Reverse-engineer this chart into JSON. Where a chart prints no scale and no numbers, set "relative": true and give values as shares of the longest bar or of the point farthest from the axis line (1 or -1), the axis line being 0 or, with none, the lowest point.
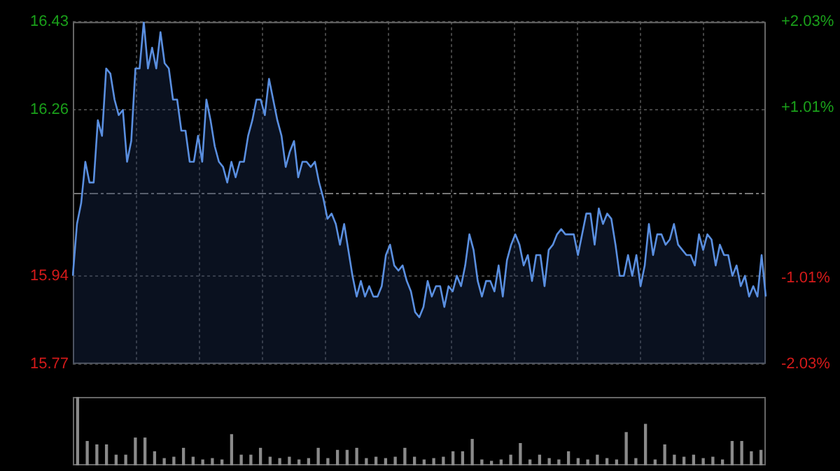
{
  "chart_data": [
    {
      "type": "area",
      "categories": [
        null,
        null,
        null,
        null,
        null,
        null,
        null,
        null,
        null,
        null,
        null,
        null,
        null,
        null,
        null,
        null,
        null,
        null,
        null,
        null,
        null,
        null,
        null,
        null,
        null,
        null,
        null,
        null,
        null,
        null,
        null,
        null,
        null,
        null,
        null,
        null,
        null,
        null,
        null,
        null,
        null,
        null,
        null,
        null,
        null,
        null,
        null,
        null,
        null,
        null,
        null,
        null,
        null,
        null,
        null,
        null,
        null,
        null,
        null,
        null,
        null,
        null,
        null,
        null,
        null,
        null,
        null,
        null,
        null,
        null,
        null,
        null,
        null,
        null,
        null,
        null,
        null,
        null,
        null,
        null,
        null,
        null,
        null,
        null,
        null,
        null,
        null,
        null,
        null,
        null,
        null,
        null,
        null,
        null,
        null,
        null,
        null,
        null,
        null,
        null,
        null,
        null,
        null,
        null,
        null,
        null,
        null,
        null,
        null,
        null,
        null,
        null,
        null,
        null,
        null,
        null,
        null,
        null,
        null,
        null,
        null,
        null,
        null,
        null,
        null,
        null,
        null,
        null,
        null,
        null,
        null,
        null,
        null,
        null,
        null,
        null,
        null,
        null,
        null,
        null,
        null,
        null,
        null,
        null,
        null,
        null,
        null,
        null,
        null,
        null,
        null,
        null,
        null,
        null,
        null,
        null,
        null,
        null,
        null,
        null,
        null,
        null,
        null,
        null,
        null,
        null,
        null
      ],
      "series": [
        {
          "color": "#5a8fe0",
          "values": [
            15.94,
            16.04,
            16.08,
            16.16,
            16.12,
            16.12,
            16.24,
            16.21,
            16.34,
            16.33,
            16.28,
            16.25,
            16.26,
            16.16,
            16.2,
            16.34,
            16.34,
            16.43,
            16.34,
            16.38,
            16.34,
            16.41,
            16.35,
            16.34,
            16.28,
            16.28,
            16.22,
            16.22,
            16.16,
            16.16,
            16.21,
            16.16,
            16.28,
            16.24,
            16.19,
            16.16,
            16.15,
            16.12,
            16.16,
            16.13,
            16.16,
            16.16,
            16.21,
            16.24,
            16.28,
            16.28,
            16.25,
            16.32,
            16.28,
            16.24,
            16.21,
            16.15,
            16.18,
            16.2,
            16.13,
            16.16,
            16.16,
            16.15,
            16.16,
            16.12,
            16.09,
            16.05,
            16.06,
            16.04,
            16.0,
            16.04,
            15.99,
            15.94,
            15.9,
            15.93,
            15.9,
            15.92,
            15.9,
            15.9,
            15.92,
            15.98,
            16.0,
            15.96,
            15.95,
            15.96,
            15.93,
            15.91,
            15.87,
            15.86,
            15.88,
            15.93,
            15.9,
            15.92,
            15.92,
            15.88,
            15.92,
            15.91,
            15.94,
            15.92,
            15.96,
            16.02,
            15.99,
            15.93,
            15.9,
            15.93,
            15.93,
            15.91,
            15.96,
            15.9,
            15.97,
            16.0,
            16.02,
            16.0,
            15.96,
            15.98,
            15.93,
            15.98,
            15.98,
            15.92,
            15.99,
            16.0,
            16.02,
            16.03,
            16.02,
            16.02,
            16.02,
            15.98,
            16.02,
            16.06,
            16.06,
            16.0,
            16.07,
            16.04,
            16.06,
            16.05,
            16.0,
            15.94,
            15.94,
            15.98,
            15.94,
            15.98,
            15.92,
            15.96,
            16.04,
            15.98,
            16.02,
            16.02,
            16.0,
            16.01,
            16.04,
            16.0,
            15.99,
            15.98,
            15.98,
            15.96,
            16.02,
            15.99,
            16.02,
            16.01,
            15.96,
            16.0,
            15.98,
            15.98,
            15.94,
            15.96,
            15.92,
            15.94,
            15.9,
            15.92,
            15.9,
            15.98,
            15.9
          ]
        }
      ],
      "ylim": [
        15.77,
        16.43
      ],
      "yticks": [
        16.43,
        16.26,
        15.94,
        15.77
      ],
      "ref_lines": [
        {
          "axis": "y",
          "value": 16.1,
          "color": "#777777",
          "line_style": "dashed"
        }
      ],
      "y2lim": [
        -2.03,
        2.03
      ],
      "y2ticks": [
        {
          "value": 2.03,
          "label": "+2.03%"
        },
        {
          "value": 1.01,
          "label": "+1.01%"
        },
        {
          "value": 0,
          "label": null
        },
        {
          "value": -1.01,
          "label": "-1.01%"
        },
        {
          "value": -2.03,
          "label": "-2.03%"
        }
      ],
      "grid": true,
      "legend": false,
      "marker": "none",
      "line_style": "solid",
      "tick_labels": "y"
    },
    {
      "type": "bar",
      "relative": true,
      "tick_labels": false,
      "legend": false,
      "grid": false,
      "categories": [
        null,
        null,
        null,
        null,
        null,
        null,
        null,
        null,
        null,
        null,
        null,
        null,
        null,
        null,
        null,
        null,
        null,
        null,
        null,
        null,
        null,
        null,
        null,
        null,
        null,
        null,
        null,
        null,
        null,
        null,
        null,
        null,
        null,
        null,
        null,
        null,
        null,
        null,
        null,
        null,
        null,
        null,
        null,
        null,
        null,
        null,
        null,
        null,
        null,
        null,
        null,
        null,
        null,
        null,
        null,
        null,
        null,
        null,
        null,
        null,
        null,
        null,
        null,
        null,
        null,
        null,
        null,
        null,
        null,
        null,
        null,
        null
      ],
      "series": [
        {
          "color": "#8a8a8a",
          "values": [
            1.0,
            0.35,
            0.3,
            0.3,
            0.15,
            0.15,
            0.4,
            0.4,
            0.2,
            0.1,
            0.12,
            0.25,
            0.12,
            0.08,
            0.1,
            0.08,
            0.45,
            0.15,
            0.15,
            0.25,
            0.12,
            0.1,
            0.12,
            0.08,
            0.1,
            0.25,
            0.1,
            0.22,
            0.22,
            0.25,
            0.1,
            0.12,
            0.1,
            0.12,
            0.25,
            0.12,
            0.08,
            0.1,
            0.12,
            0.2,
            0.2,
            0.38,
            0.08,
            0.06,
            0.08,
            0.15,
            0.32,
            0.08,
            0.15,
            0.1,
            0.08,
            0.2,
            0.1,
            0.08,
            0.15,
            0.1,
            0.08,
            0.48,
            0.1,
            0.6,
            0.08,
            0.3,
            0.15,
            0.12,
            0.15,
            0.1,
            0.12,
            0.08,
            0.35,
            0.35,
            0.2,
            0.22
          ]
        }
      ]
    }
  ]
}
